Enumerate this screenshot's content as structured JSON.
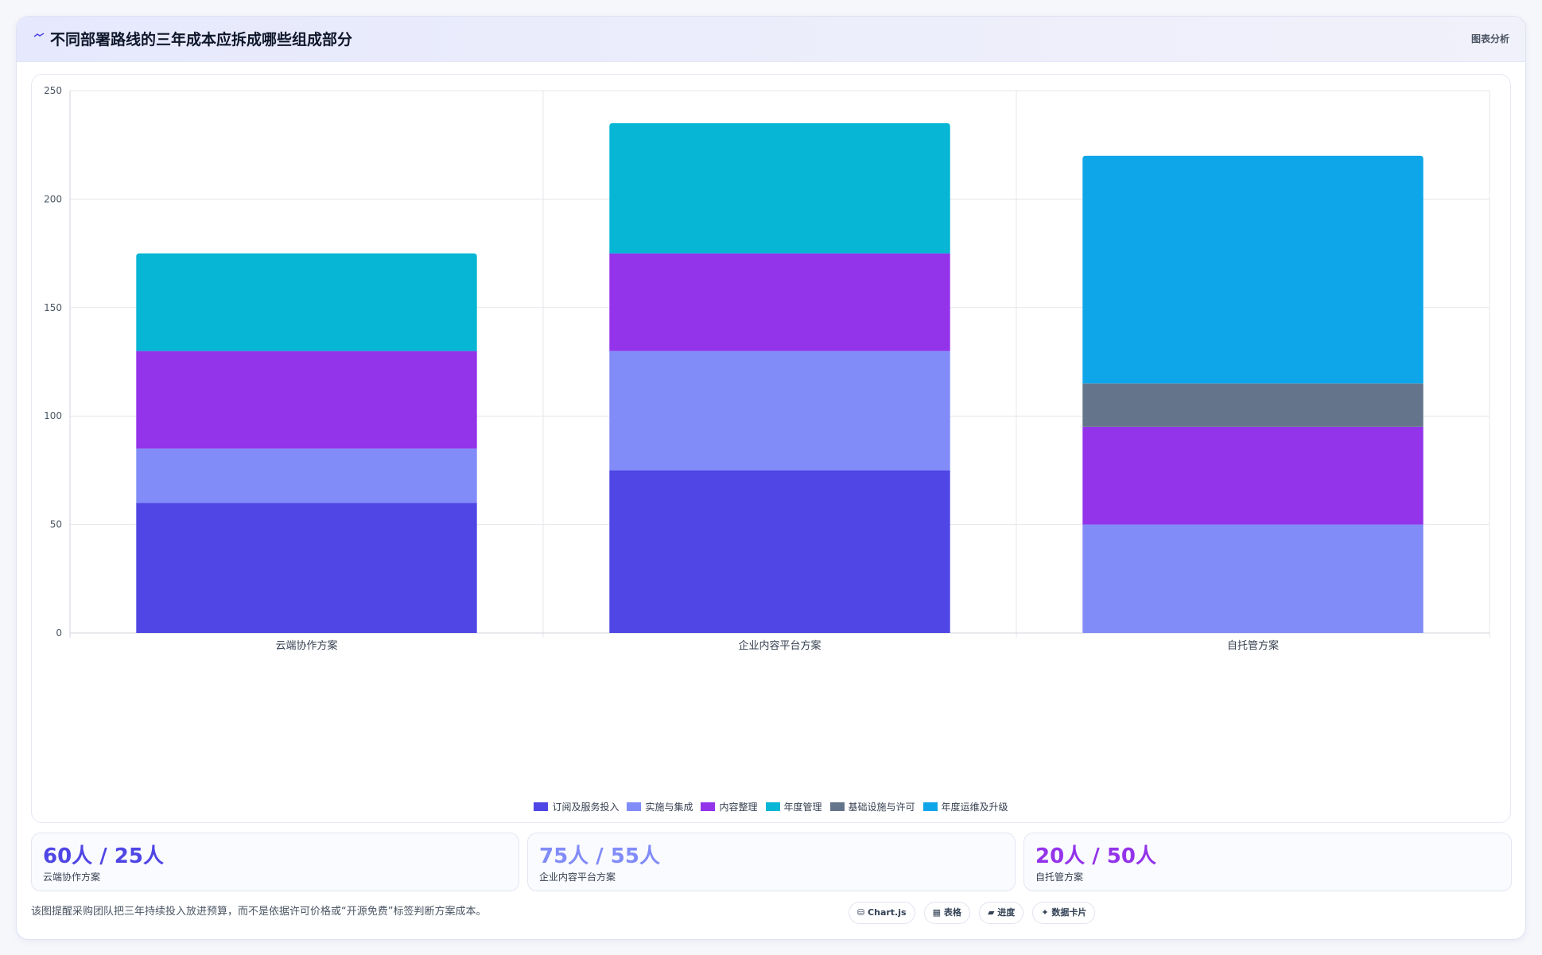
{
  "header": {
    "title": "不同部署路线的三年成本应拆成哪些组成部分",
    "badge": "图表分析",
    "icon": "trend-line-icon"
  },
  "colors": {
    "订阅及服务投入": "#4f46e5",
    "实施与集成": "#818cf8",
    "内容整理": "#9333ea",
    "年度管理": "#06b6d4",
    "基础设施与许可": "#64748b",
    "年度运维及升级": "#0ea5e9"
  },
  "chart_data": {
    "type": "bar",
    "stacked": true,
    "categories": [
      "云端协作方案",
      "企业内容平台方案",
      "自托管方案"
    ],
    "series": [
      {
        "name": "订阅及服务投入",
        "values": [
          60,
          75,
          0
        ]
      },
      {
        "name": "实施与集成",
        "values": [
          25,
          55,
          50
        ]
      },
      {
        "name": "内容整理",
        "values": [
          45,
          45,
          45
        ]
      },
      {
        "name": "年度管理",
        "values": [
          45,
          60,
          0
        ]
      },
      {
        "name": "基础设施与许可",
        "values": [
          0,
          0,
          20
        ]
      },
      {
        "name": "年度运维及升级",
        "values": [
          0,
          0,
          105
        ]
      }
    ],
    "ylim": [
      0,
      250
    ],
    "yticks": [
      0,
      50,
      100,
      150,
      200,
      250
    ],
    "grid": true,
    "legend_position": "bottom"
  },
  "stats": [
    {
      "value": "60人 / 25人",
      "label": "云端协作方案",
      "color": "#4f46e5"
    },
    {
      "value": "75人 / 55人",
      "label": "企业内容平台方案",
      "color": "#818cf8"
    },
    {
      "value": "20人 / 50人",
      "label": "自托管方案",
      "color": "#9333ea"
    }
  ],
  "footer": {
    "note": "该图提醒采购团队把三年持续投入放进预算，而不是依据许可价格或“开源免费”标签判断方案成本。",
    "chips": [
      "⛁ Chart.js",
      "▦ 表格",
      "▰ 进度",
      "✦ 数据卡片"
    ]
  }
}
